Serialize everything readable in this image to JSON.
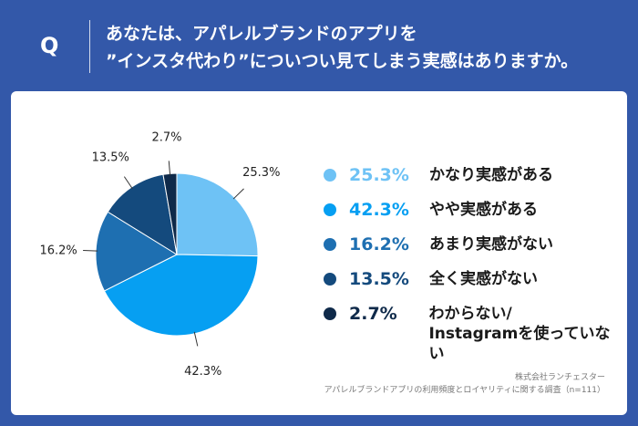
{
  "question": {
    "label": "Q",
    "line1": "あなたは、アパレルブランドのアプリを",
    "line2": "”インスタ代わり”についつい見てしまう実感はありますか。"
  },
  "chart_data": {
    "type": "pie",
    "slices": [
      {
        "label": "かなり実感がある",
        "value": 25.3,
        "value_text": "25.3%",
        "color": "#6ec2f5"
      },
      {
        "label": "やや実感がある",
        "value": 42.3,
        "value_text": "42.3%",
        "color": "#069ff2"
      },
      {
        "label": "あまり実感がない",
        "value": 16.2,
        "value_text": "16.2%",
        "color": "#1e6fb1"
      },
      {
        "label": "全く実感がない",
        "value": 13.5,
        "value_text": "13.5%",
        "color": "#144a7d"
      },
      {
        "label": "わからない/Instagramを使っていない",
        "label_line1": "わからない/",
        "label_line2": "Instagramを使っていない",
        "value": 2.7,
        "value_text": "2.7%",
        "color": "#0f2a4a"
      }
    ],
    "legend_placement": "right"
  },
  "footer": {
    "company": "株式会社ランチェスター",
    "survey": "アパレルブランドアプリの利用頻度とロイヤリティに関する調査（n=111）"
  }
}
